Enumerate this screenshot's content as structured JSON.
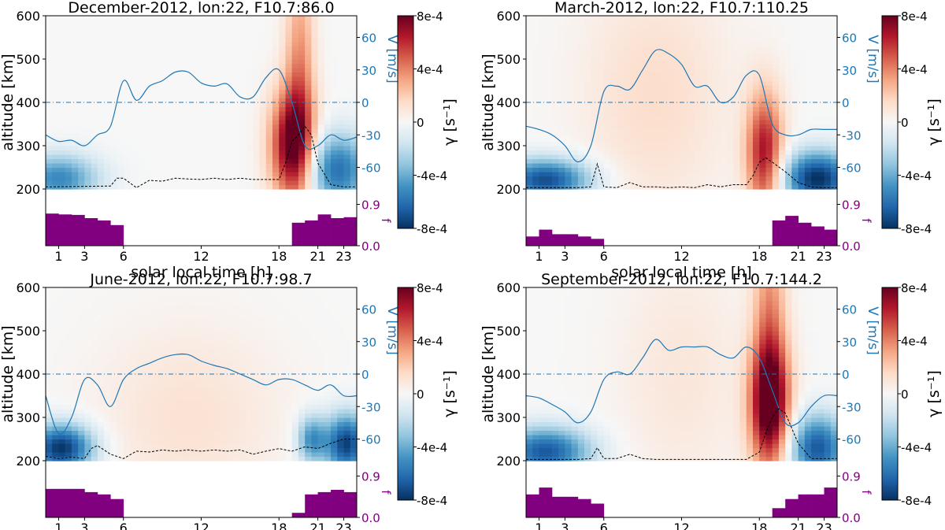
{
  "figure": {
    "colorbar_ticks": [
      "8e-4",
      "4e-4",
      "0",
      "-4e-4",
      "-8e-4"
    ],
    "colorbar_label": "γ [s⁻¹]",
    "velocity_label": "V [m/s]",
    "velocity_ticks": [
      "60",
      "30",
      "0",
      "-30",
      "-60"
    ],
    "f_label": "f",
    "f_ticks": [
      "0.9",
      "0.0"
    ],
    "altitude_label": "altitude [km]",
    "altitude_ticks": [
      "600",
      "500",
      "400",
      "300",
      "200"
    ],
    "xlabel": "solar local time [h]",
    "xticks": [
      "1",
      "3",
      "6",
      "12",
      "18",
      "21",
      "23"
    ]
  },
  "colors": {
    "velocity_line": "#1f77b4",
    "f_bars": "#800080",
    "boundary": "#000000",
    "red_max": "#67001f",
    "blue_max": "#053061"
  },
  "chart_data": [
    {
      "type": "heatmap",
      "title": "December-2012, lon:22, F10.7:86.0",
      "ylim": [
        200,
        600
      ],
      "xlim": [
        0,
        24
      ],
      "vlim": [
        -80,
        80
      ],
      "flim": [
        0,
        1.2
      ],
      "climits": [
        -0.0008,
        0.0008
      ],
      "velocity": {
        "x": [
          0,
          1,
          2,
          3,
          4,
          5,
          6,
          7,
          8,
          9,
          10,
          11,
          12,
          13,
          14,
          15,
          16,
          17,
          18,
          19,
          20,
          21,
          22,
          23,
          24
        ],
        "y": [
          -30,
          -36,
          -35,
          -40,
          -30,
          -22,
          20,
          2,
          15,
          20,
          28,
          28,
          18,
          15,
          17,
          5,
          5,
          23,
          30,
          0,
          -40,
          -40,
          -30,
          -35,
          -32
        ]
      },
      "boundary": {
        "x": [
          0,
          5,
          5.5,
          6,
          7,
          8,
          9,
          10,
          11,
          12,
          13,
          14,
          15,
          16,
          17,
          18,
          18.5,
          19,
          19.5,
          20,
          20.5,
          21,
          22,
          23,
          24
        ],
        "y": [
          205,
          207,
          225,
          225,
          203,
          220,
          218,
          225,
          223,
          222,
          225,
          222,
          225,
          222,
          222,
          222,
          260,
          310,
          325,
          345,
          325,
          260,
          210,
          205,
          205
        ]
      },
      "f": [
        0.7,
        0.68,
        0.67,
        0.6,
        0.55,
        0.45,
        0,
        0,
        0,
        0,
        0,
        0,
        0,
        0,
        0,
        0,
        0,
        0,
        0,
        0.5,
        0.55,
        0.68,
        0.6,
        0.62
      ],
      "red": [
        {
          "x": 19.0,
          "y": 300,
          "a": 1.0,
          "sx": 1.2,
          "sy": 90
        },
        {
          "x": 19.6,
          "y": 480,
          "a": 0.45,
          "sx": 0.8,
          "sy": 180
        }
      ],
      "blue": [
        {
          "x": 1.0,
          "y": 225,
          "a": 0.65,
          "sx": 2.2,
          "sy": 40
        },
        {
          "x": 22.5,
          "y": 245,
          "a": 0.75,
          "sx": 1.8,
          "sy": 60
        }
      ]
    },
    {
      "type": "heatmap",
      "title": "March-2012, lon:22, F10.7:110.25",
      "ylim": [
        200,
        600
      ],
      "xlim": [
        0,
        24
      ],
      "vlim": [
        -80,
        80
      ],
      "flim": [
        0,
        1.2
      ],
      "climits": [
        -0.0008,
        0.0008
      ],
      "velocity": {
        "x": [
          0,
          1,
          2,
          3,
          4,
          5,
          6,
          7,
          8,
          9,
          10,
          11,
          12,
          13,
          14,
          15,
          16,
          17,
          18,
          19,
          20,
          21,
          22,
          23,
          24
        ],
        "y": [
          -22,
          -25,
          -30,
          -40,
          -55,
          -40,
          10,
          15,
          12,
          30,
          48,
          45,
          35,
          15,
          15,
          0,
          5,
          25,
          25,
          -20,
          -30,
          -30,
          -25,
          -25,
          -25
        ]
      },
      "boundary": {
        "x": [
          0,
          4,
          5,
          5.5,
          6,
          7,
          8,
          9,
          10,
          11,
          12,
          13,
          14,
          15,
          16,
          17,
          17.5,
          18,
          18.5,
          19,
          20,
          21,
          22,
          23,
          24
        ],
        "y": [
          203,
          203,
          205,
          258,
          205,
          203,
          215,
          205,
          205,
          203,
          205,
          203,
          210,
          205,
          210,
          210,
          230,
          262,
          272,
          262,
          240,
          215,
          205,
          203,
          203
        ]
      },
      "f": [
        0.2,
        0.35,
        0.25,
        0.25,
        0.2,
        0.15,
        0,
        0,
        0,
        0,
        0,
        0,
        0,
        0,
        0,
        0,
        0,
        0,
        0,
        0.55,
        0.65,
        0.5,
        0.42,
        0.35
      ],
      "red": [
        {
          "x": 18.4,
          "y": 280,
          "a": 0.85,
          "sx": 1.0,
          "sy": 100
        },
        {
          "x": 10.0,
          "y": 420,
          "a": 0.18,
          "sx": 4.0,
          "sy": 200
        }
      ],
      "blue": [
        {
          "x": 1.5,
          "y": 222,
          "a": 0.9,
          "sx": 2.5,
          "sy": 35
        },
        {
          "x": 22.5,
          "y": 225,
          "a": 1.0,
          "sx": 2.0,
          "sy": 45
        }
      ]
    },
    {
      "type": "heatmap",
      "title": "June-2012, lon:22, F10.7:98.7",
      "ylim": [
        200,
        600
      ],
      "xlim": [
        0,
        24
      ],
      "vlim": [
        -80,
        80
      ],
      "flim": [
        0,
        1.2
      ],
      "climits": [
        -0.0008,
        0.0008
      ],
      "velocity": {
        "x": [
          0,
          1,
          2,
          3,
          4,
          5,
          6,
          7,
          8,
          9,
          10,
          11,
          12,
          13,
          14,
          15,
          16,
          17,
          18,
          19,
          20,
          21,
          22,
          23,
          24
        ],
        "y": [
          -20,
          -55,
          -40,
          -5,
          -10,
          -30,
          -5,
          5,
          10,
          15,
          18,
          18,
          12,
          8,
          5,
          0,
          -5,
          -10,
          -5,
          -5,
          -10,
          -15,
          -10,
          -20,
          -20
        ]
      },
      "boundary": {
        "x": [
          0,
          1,
          2,
          3,
          3.5,
          4,
          5,
          6,
          7,
          8,
          9,
          10,
          11,
          12,
          13,
          14,
          15,
          16,
          17,
          18,
          19,
          20,
          21,
          22,
          23,
          24
        ],
        "y": [
          210,
          205,
          208,
          205,
          228,
          235,
          215,
          205,
          222,
          220,
          225,
          222,
          225,
          222,
          225,
          222,
          225,
          215,
          222,
          228,
          222,
          232,
          228,
          240,
          250,
          250
        ]
      },
      "f": [
        0.62,
        0.62,
        0.62,
        0.55,
        0.5,
        0.4,
        0,
        0,
        0,
        0,
        0,
        0,
        0,
        0,
        0,
        0,
        0,
        0,
        0,
        0.1,
        0.5,
        0.55,
        0.6,
        0.55
      ],
      "red": [
        {
          "x": 11.0,
          "y": 300,
          "a": 0.15,
          "sx": 5.0,
          "sy": 150
        }
      ],
      "blue": [
        {
          "x": 1.2,
          "y": 230,
          "a": 1.0,
          "sx": 1.8,
          "sy": 40
        },
        {
          "x": 23.2,
          "y": 240,
          "a": 0.95,
          "sx": 1.2,
          "sy": 50
        },
        {
          "x": 20.5,
          "y": 250,
          "a": 0.6,
          "sx": 0.8,
          "sy": 40
        }
      ]
    },
    {
      "type": "heatmap",
      "title": "September-2012, lon:22, F10.7:144.2",
      "ylim": [
        200,
        600
      ],
      "xlim": [
        0,
        24
      ],
      "vlim": [
        -80,
        80
      ],
      "flim": [
        0,
        1.2
      ],
      "climits": [
        -0.0008,
        0.0008
      ],
      "velocity": {
        "x": [
          0,
          1,
          2,
          3,
          4,
          5,
          6,
          7,
          8,
          9,
          10,
          11,
          12,
          13,
          14,
          15,
          16,
          17,
          18,
          19,
          20,
          21,
          22,
          23,
          24
        ],
        "y": [
          -20,
          -22,
          -28,
          -35,
          -45,
          -35,
          -5,
          2,
          0,
          15,
          32,
          22,
          25,
          25,
          25,
          18,
          15,
          25,
          15,
          -15,
          -45,
          -45,
          -30,
          -20,
          -20
        ]
      },
      "boundary": {
        "x": [
          0,
          4,
          5,
          5.5,
          6,
          7,
          8,
          9,
          10,
          11,
          12,
          13,
          14,
          15,
          16,
          17,
          18,
          18.5,
          19,
          19.5,
          20,
          21,
          22,
          23,
          24
        ],
        "y": [
          203,
          203,
          205,
          230,
          205,
          205,
          215,
          205,
          203,
          203,
          203,
          203,
          203,
          203,
          203,
          203,
          220,
          265,
          300,
          320,
          310,
          240,
          205,
          205,
          205
        ]
      },
      "f": [
        0.5,
        0.65,
        0.45,
        0.45,
        0.4,
        0.3,
        0,
        0,
        0,
        0,
        0,
        0,
        0,
        0,
        0,
        0,
        0,
        0,
        0,
        0.2,
        0.4,
        0.5,
        0.5,
        0.65
      ],
      "red": [
        {
          "x": 18.8,
          "y": 330,
          "a": 1.0,
          "sx": 1.1,
          "sy": 100
        },
        {
          "x": 18.8,
          "y": 520,
          "a": 0.45,
          "sx": 0.9,
          "sy": 200
        },
        {
          "x": 12.0,
          "y": 400,
          "a": 0.12,
          "sx": 3.5,
          "sy": 200
        }
      ],
      "blue": [
        {
          "x": 1.5,
          "y": 222,
          "a": 0.85,
          "sx": 2.5,
          "sy": 40
        },
        {
          "x": 22.5,
          "y": 230,
          "a": 0.85,
          "sx": 1.6,
          "sy": 55
        }
      ]
    }
  ]
}
